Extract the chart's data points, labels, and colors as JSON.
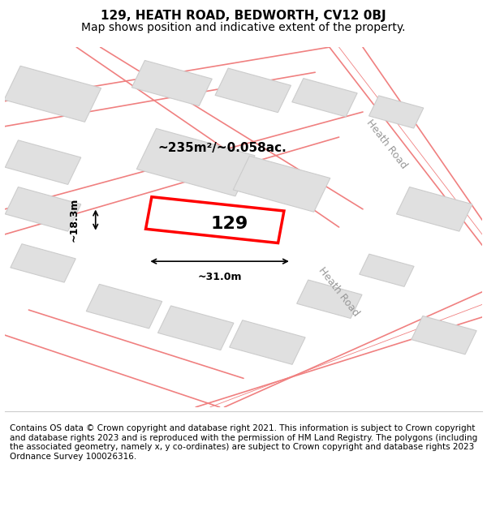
{
  "title": "129, HEATH ROAD, BEDWORTH, CV12 0BJ",
  "subtitle": "Map shows position and indicative extent of the property.",
  "footer": "Contains OS data © Crown copyright and database right 2021. This information is subject to Crown copyright and database rights 2023 and is reproduced with the permission of HM Land Registry. The polygons (including the associated geometry, namely x, y co-ordinates) are subject to Crown copyright and database rights 2023 Ordnance Survey 100026316.",
  "background_color": "#f5f5f5",
  "map_background": "#f9f9f9",
  "building_fill": "#e0e0e0",
  "building_edge": "#cccccc",
  "road_line_color": "#f08080",
  "highlight_color": "#ff0000",
  "highlight_fill": "none",
  "label_129": "129",
  "area_label": "~235m²/~0.058ac.",
  "dim_width": "~31.0m",
  "dim_height": "~18.3m",
  "road_label_1": "Heath Road",
  "road_label_2": "Heath Road",
  "title_fontsize": 11,
  "subtitle_fontsize": 10,
  "footer_fontsize": 7.5,
  "map_border_color": "#cccccc"
}
